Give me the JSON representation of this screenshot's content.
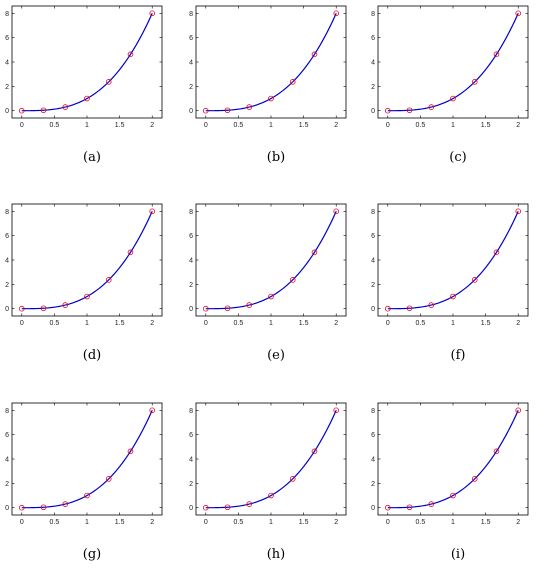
{
  "colors": {
    "curve": "#0000cc",
    "markers": "#e8001c",
    "axes": "#000000",
    "background": "#ffffff"
  },
  "chart_data": [
    {
      "type": "line",
      "caption": "(a)",
      "x": [
        0,
        0.3333,
        0.6667,
        1,
        1.3333,
        1.6667,
        2
      ],
      "y": [
        0,
        0.037,
        0.296,
        1,
        2.37,
        4.63,
        8
      ],
      "curve": "y = x^3",
      "xlim": [
        -0.15,
        2.15
      ],
      "ylim": [
        -0.6,
        8.6
      ],
      "xticks": [
        "0",
        "0.5",
        "1",
        "1.5",
        "2"
      ],
      "yticks": [
        "0",
        "2",
        "4",
        "6",
        "8"
      ],
      "grid": false
    },
    {
      "type": "line",
      "caption": "(b)",
      "x": [
        0,
        0.3333,
        0.6667,
        1,
        1.3333,
        1.6667,
        2
      ],
      "y": [
        0,
        0.037,
        0.296,
        1,
        2.37,
        4.63,
        8
      ],
      "curve": "y = x^3",
      "xlim": [
        -0.15,
        2.15
      ],
      "ylim": [
        -0.6,
        8.6
      ],
      "xticks": [
        "0",
        "0.5",
        "1",
        "1.5",
        "2"
      ],
      "yticks": [
        "0",
        "2",
        "4",
        "6",
        "8"
      ],
      "grid": false
    },
    {
      "type": "line",
      "caption": "(c)",
      "x": [
        0,
        0.3333,
        0.6667,
        1,
        1.3333,
        1.6667,
        2
      ],
      "y": [
        0,
        0.037,
        0.296,
        1,
        2.37,
        4.63,
        8
      ],
      "curve": "y = x^3",
      "xlim": [
        -0.15,
        2.15
      ],
      "ylim": [
        -0.6,
        8.6
      ],
      "xticks": [
        "0",
        "0.5",
        "1",
        "1.5",
        "2"
      ],
      "yticks": [
        "0",
        "2",
        "4",
        "6",
        "8"
      ],
      "grid": false
    },
    {
      "type": "line",
      "caption": "(d)",
      "x": [
        0,
        0.3333,
        0.6667,
        1,
        1.3333,
        1.6667,
        2
      ],
      "y": [
        0,
        0.037,
        0.296,
        1,
        2.37,
        4.63,
        8
      ],
      "curve": "y = x^3",
      "xlim": [
        -0.15,
        2.15
      ],
      "ylim": [
        -0.6,
        8.6
      ],
      "xticks": [
        "0",
        "0.5",
        "1",
        "1.5",
        "2"
      ],
      "yticks": [
        "0",
        "2",
        "4",
        "6",
        "8"
      ],
      "grid": false
    },
    {
      "type": "line",
      "caption": "(e)",
      "x": [
        0,
        0.3333,
        0.6667,
        1,
        1.3333,
        1.6667,
        2
      ],
      "y": [
        0,
        0.037,
        0.296,
        1,
        2.37,
        4.63,
        8
      ],
      "curve": "y = x^3",
      "xlim": [
        -0.15,
        2.15
      ],
      "ylim": [
        -0.6,
        8.6
      ],
      "xticks": [
        "0",
        "0.5",
        "1",
        "1.5",
        "2"
      ],
      "yticks": [
        "0",
        "2",
        "4",
        "6",
        "8"
      ],
      "grid": false
    },
    {
      "type": "line",
      "caption": "(f)",
      "x": [
        0,
        0.3333,
        0.6667,
        1,
        1.3333,
        1.6667,
        2
      ],
      "y": [
        0,
        0.037,
        0.296,
        1,
        2.37,
        4.63,
        8
      ],
      "curve": "y = x^3",
      "xlim": [
        -0.15,
        2.15
      ],
      "ylim": [
        -0.6,
        8.6
      ],
      "xticks": [
        "0",
        "0.5",
        "1",
        "1.5",
        "2"
      ],
      "yticks": [
        "0",
        "2",
        "4",
        "6",
        "8"
      ],
      "grid": false
    },
    {
      "type": "line",
      "caption": "(g)",
      "x": [
        0,
        0.3333,
        0.6667,
        1,
        1.3333,
        1.6667,
        2
      ],
      "y": [
        0,
        0.037,
        0.296,
        1,
        2.37,
        4.63,
        8
      ],
      "curve": "y = x^3",
      "xlim": [
        -0.15,
        2.15
      ],
      "ylim": [
        -0.6,
        8.6
      ],
      "xticks": [
        "0",
        "0.5",
        "1",
        "1.5",
        "2"
      ],
      "yticks": [
        "0",
        "2",
        "4",
        "6",
        "8"
      ],
      "grid": false
    },
    {
      "type": "line",
      "caption": "(h)",
      "x": [
        0,
        0.3333,
        0.6667,
        1,
        1.3333,
        1.6667,
        2
      ],
      "y": [
        0,
        0.037,
        0.296,
        1,
        2.37,
        4.63,
        8
      ],
      "curve": "y = x^3",
      "xlim": [
        -0.15,
        2.15
      ],
      "ylim": [
        -0.6,
        8.6
      ],
      "xticks": [
        "0",
        "0.5",
        "1",
        "1.5",
        "2"
      ],
      "yticks": [
        "0",
        "2",
        "4",
        "6",
        "8"
      ],
      "grid": false
    },
    {
      "type": "line",
      "caption": "(i)",
      "x": [
        0,
        0.3333,
        0.6667,
        1,
        1.3333,
        1.6667,
        2
      ],
      "y": [
        0,
        0.037,
        0.296,
        1,
        2.37,
        4.63,
        8
      ],
      "curve": "y = x^3",
      "xlim": [
        -0.15,
        2.15
      ],
      "ylim": [
        -0.6,
        8.6
      ],
      "xticks": [
        "0",
        "0.5",
        "1",
        "1.5",
        "2"
      ],
      "yticks": [
        "0",
        "2",
        "4",
        "6",
        "8"
      ],
      "grid": false
    }
  ]
}
